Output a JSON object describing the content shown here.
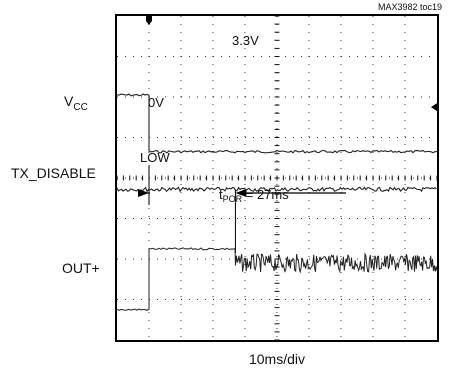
{
  "chart_data": {
    "type": "line",
    "figure_id": "MAX3982 toc19",
    "x_scale": "10ms/div",
    "divisions": {
      "x": 10,
      "y": 8
    },
    "channel_labels": [
      {
        "id": "vcc",
        "text": "V",
        "sub": "CC"
      },
      {
        "id": "txd",
        "text": "TX_DISABLE",
        "sub": ""
      },
      {
        "id": "outp",
        "text": "OUT+",
        "sub": ""
      }
    ],
    "level_annotations": {
      "vcc_high": "3.3V",
      "vcc_low": "0V",
      "txd_low": "LOW"
    },
    "measurement": {
      "label_main": "t",
      "label_sub": "POR",
      "label_rest": " = 27ms",
      "start_div": 1.0,
      "end_div": 3.7
    },
    "series": [
      {
        "name": "V",
        "x_div": [
          0,
          1.0,
          1.0,
          10
        ],
        "y_div": [
          1.95,
          1.95,
          3.35,
          3.35
        ]
      },
      {
        "name": "TX_DISABLE",
        "x_div": [
          0,
          10
        ],
        "y_div": [
          4.28,
          4.28
        ]
      },
      {
        "name": "OUT+",
        "x_div": [
          0,
          1.0,
          1.0,
          3.7,
          3.7,
          10
        ],
        "y_div": [
          7.25,
          7.25,
          5.75,
          5.75,
          6.1,
          6.1
        ]
      }
    ],
    "trigger_marker_div": 1.0,
    "grid": true
  }
}
